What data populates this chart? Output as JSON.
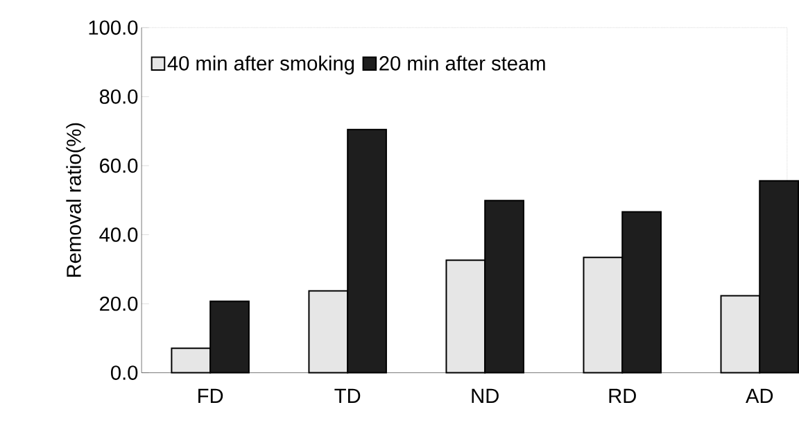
{
  "chart_data": {
    "type": "bar",
    "ylabel": "Removal ratio(%)",
    "categories": [
      "FD",
      "TD",
      "ND",
      "RD",
      "AD"
    ],
    "series": [
      {
        "name": "40 min after smoking",
        "color": "#e6e6e6",
        "values": [
          7.1,
          23.7,
          32.6,
          33.4,
          22.3
        ]
      },
      {
        "name": "20 min after steam",
        "color": "#1e1e1e",
        "values": [
          20.7,
          70.5,
          49.9,
          46.6,
          55.6
        ]
      }
    ],
    "ylim": [
      0,
      100
    ],
    "yticks": [
      {
        "value": 0,
        "label": "0.0"
      },
      {
        "value": 20,
        "label": "20.0"
      },
      {
        "value": 40,
        "label": "40.0"
      },
      {
        "value": 60,
        "label": "60.0"
      },
      {
        "value": 80,
        "label": "80.0"
      },
      {
        "value": 100,
        "label": "100.0"
      }
    ],
    "grid": false,
    "legend": "top left"
  }
}
